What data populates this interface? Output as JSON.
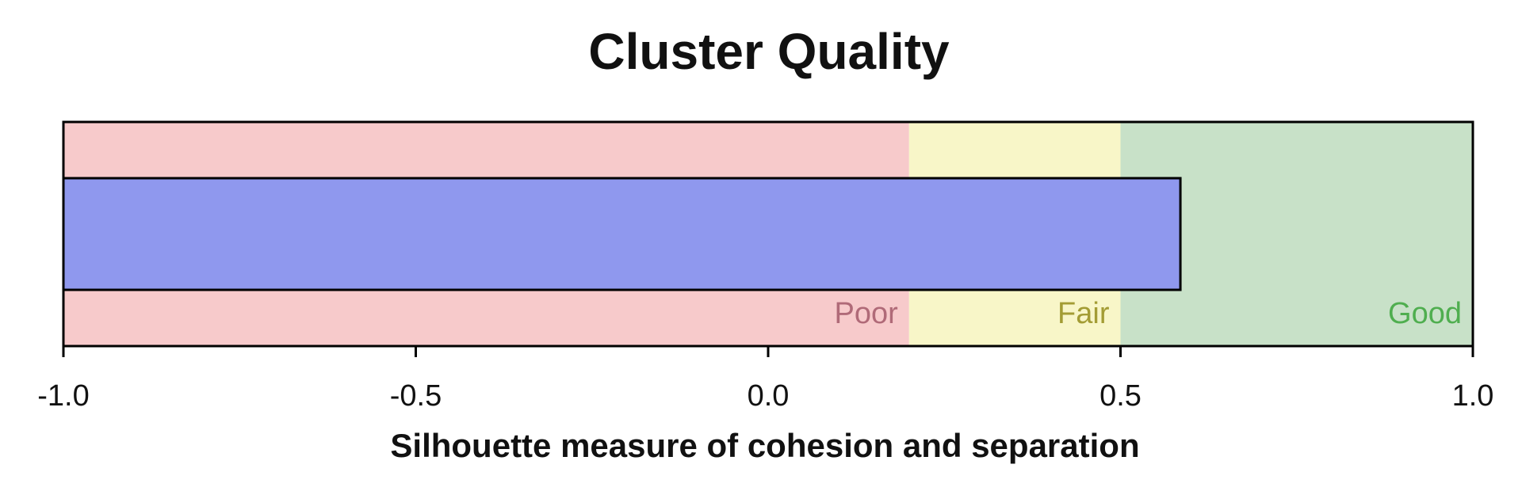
{
  "chart_data": {
    "type": "bullet",
    "title": "Cluster Quality",
    "x_label": "Silhouette measure of cohesion and separation",
    "value": 0.585,
    "color": "#8f98ee",
    "bands": [
      {
        "name": "Poor",
        "from": -1.0,
        "to": 0.2,
        "color": "#f7cacb",
        "label_color": "#b06a78"
      },
      {
        "name": "Fair",
        "from": 0.2,
        "to": 0.5,
        "color": "#f8f6c8",
        "label_color": "#a39c34"
      },
      {
        "name": "Good",
        "from": 0.5,
        "to": 1.0,
        "color": "#c8e1c8",
        "label_color": "#4fae4f"
      }
    ],
    "xlim": [
      -1,
      1
    ],
    "xticks": [
      {
        "value": -1,
        "label": "-1.0"
      },
      -0.5,
      {
        "value": 0,
        "label": "0.0"
      },
      0.5,
      {
        "value": 1,
        "label": "1.0"
      }
    ]
  }
}
